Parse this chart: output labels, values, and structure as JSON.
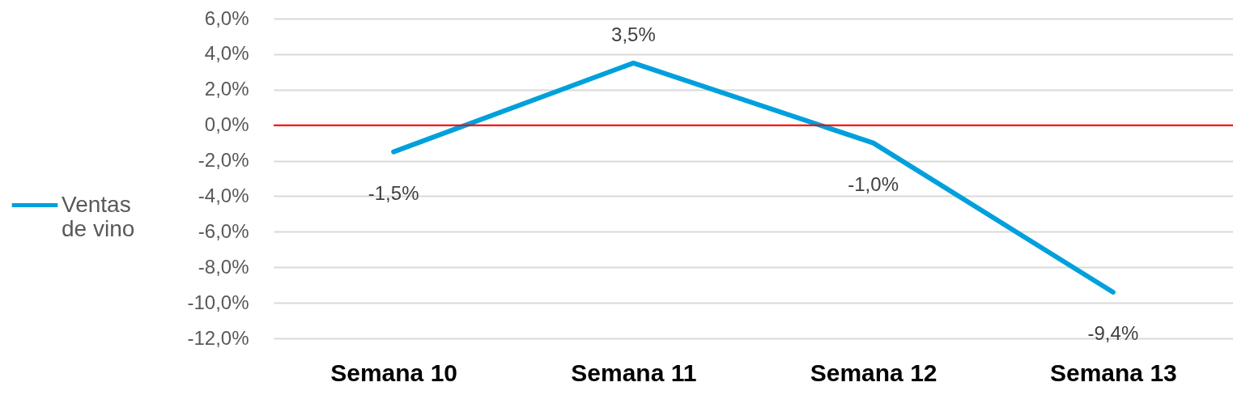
{
  "chart_data": {
    "type": "line",
    "categories": [
      "Semana 10",
      "Semana 11",
      "Semana 12",
      "Semana 13"
    ],
    "series": [
      {
        "name": "Ventas de vino",
        "color": "#00a0dc",
        "values": [
          -1.5,
          3.5,
          -1.0,
          -9.4
        ],
        "value_labels": [
          "-1,5%",
          "3,5%",
          "-1,0%",
          "-9,4%"
        ]
      }
    ],
    "ylim": [
      -12,
      6
    ],
    "yticks": [
      {
        "value": -12,
        "label": "-12,0%"
      },
      {
        "value": -10,
        "label": "-10,0%"
      },
      {
        "value": -8,
        "label": "-8,0%"
      },
      {
        "value": -6,
        "label": "-6,0%"
      },
      {
        "value": -4,
        "label": "-4,0%"
      },
      {
        "value": -2,
        "label": "-2,0%"
      },
      {
        "value": 0,
        "label": "0,0%"
      },
      {
        "value": 2,
        "label": "2,0%"
      },
      {
        "value": 4,
        "label": "4,0%"
      },
      {
        "value": 6,
        "label": "6,0%"
      }
    ],
    "ref_lines": [
      {
        "axis": "y",
        "value": 0,
        "color": "#ff0000"
      }
    ],
    "grid": "y",
    "legend": "left"
  }
}
